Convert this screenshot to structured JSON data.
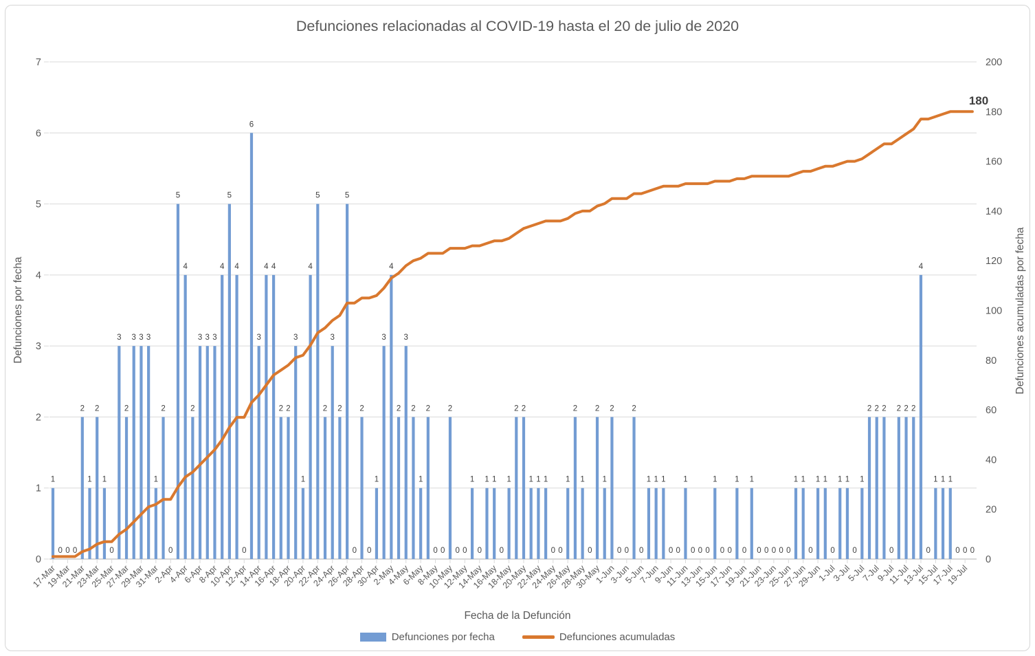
{
  "title": "Defunciones relacionadas al COVID-19 hasta el 20 de julio de 2020",
  "chart_data": {
    "type": "bar",
    "combo": "bar+line",
    "title": "Defunciones relacionadas al COVID-19 hasta el 20 de julio de 2020",
    "xlabel": "Fecha de la Defunción",
    "ylabel_left": "Defunciones por fecha",
    "ylabel_right": "Defunciones acumuladas por fecha",
    "ylim_left": [
      0,
      7
    ],
    "ytick_step_left": 1,
    "ylim_right": [
      0,
      200
    ],
    "ytick_step_right": 20,
    "x_tick_every": 2,
    "grid": "horizontal-left-axis",
    "legend_position": "bottom",
    "annotation": {
      "text": "180"
    },
    "colors": {
      "bar": "#739CD3",
      "line": "#D9782E",
      "grid": "#D9D9D9",
      "axis": "#BFBFBF",
      "tick_text": "#595959",
      "data_label": "#404040"
    },
    "categories": [
      "17-Mar",
      "18-Mar",
      "19-Mar",
      "20-Mar",
      "21-Mar",
      "22-Mar",
      "23-Mar",
      "24-Mar",
      "25-Mar",
      "26-Mar",
      "27-Mar",
      "28-Mar",
      "29-Mar",
      "30-Mar",
      "31-Mar",
      "1-Apr",
      "2-Apr",
      "3-Apr",
      "4-Apr",
      "5-Apr",
      "6-Apr",
      "7-Apr",
      "8-Apr",
      "9-Apr",
      "10-Apr",
      "11-Apr",
      "12-Apr",
      "13-Apr",
      "14-Apr",
      "15-Apr",
      "16-Apr",
      "17-Apr",
      "18-Apr",
      "19-Apr",
      "20-Apr",
      "21-Apr",
      "22-Apr",
      "23-Apr",
      "24-Apr",
      "25-Apr",
      "26-Apr",
      "27-Apr",
      "28-Apr",
      "29-Apr",
      "30-Apr",
      "1-May",
      "2-May",
      "3-May",
      "4-May",
      "5-May",
      "6-May",
      "7-May",
      "8-May",
      "9-May",
      "10-May",
      "11-May",
      "12-May",
      "13-May",
      "14-May",
      "15-May",
      "16-May",
      "17-May",
      "18-May",
      "19-May",
      "20-May",
      "21-May",
      "22-May",
      "23-May",
      "24-May",
      "25-May",
      "26-May",
      "27-May",
      "28-May",
      "29-May",
      "30-May",
      "31-May",
      "1-Jun",
      "2-Jun",
      "3-Jun",
      "4-Jun",
      "5-Jun",
      "6-Jun",
      "7-Jun",
      "8-Jun",
      "9-Jun",
      "10-Jun",
      "11-Jun",
      "12-Jun",
      "13-Jun",
      "14-Jun",
      "15-Jun",
      "16-Jun",
      "17-Jun",
      "18-Jun",
      "19-Jun",
      "20-Jun",
      "21-Jun",
      "22-Jun",
      "23-Jun",
      "24-Jun",
      "25-Jun",
      "26-Jun",
      "27-Jun",
      "28-Jun",
      "29-Jun",
      "30-Jun",
      "1-Jul",
      "2-Jul",
      "3-Jul",
      "4-Jul",
      "5-Jul",
      "6-Jul",
      "7-Jul",
      "8-Jul",
      "9-Jul",
      "10-Jul",
      "11-Jul",
      "12-Jul",
      "13-Jul",
      "14-Jul",
      "15-Jul",
      "16-Jul",
      "17-Jul",
      "18-Jul",
      "19-Jul",
      "20-Jul"
    ],
    "series": [
      {
        "name": "Defunciones por fecha",
        "type": "bar",
        "axis": "left",
        "values": [
          1,
          0,
          0,
          0,
          2,
          1,
          2,
          1,
          0,
          3,
          2,
          3,
          3,
          3,
          1,
          2,
          0,
          5,
          4,
          2,
          3,
          3,
          3,
          4,
          5,
          4,
          0,
          6,
          3,
          4,
          4,
          2,
          2,
          3,
          1,
          4,
          5,
          2,
          3,
          2,
          5,
          0,
          2,
          0,
          1,
          3,
          4,
          2,
          3,
          2,
          1,
          2,
          0,
          0,
          2,
          0,
          0,
          1,
          0,
          1,
          1,
          0,
          1,
          2,
          2,
          1,
          1,
          1,
          0,
          0,
          1,
          2,
          1,
          0,
          2,
          1,
          2,
          0,
          0,
          2,
          0,
          1,
          1,
          1,
          0,
          0,
          1,
          0,
          0,
          0,
          1,
          0,
          0,
          1,
          0,
          1,
          0,
          0,
          0,
          0,
          0,
          1,
          1,
          0,
          1,
          1,
          0,
          1,
          1,
          0,
          1,
          2,
          2,
          2,
          0,
          2,
          2,
          2,
          4,
          0,
          1,
          1,
          1,
          0,
          0,
          0
        ]
      },
      {
        "name": "Defunciones acumuladas",
        "type": "line",
        "axis": "right",
        "values": [
          1,
          1,
          1,
          1,
          3,
          4,
          6,
          7,
          7,
          10,
          12,
          15,
          18,
          21,
          22,
          24,
          24,
          29,
          33,
          35,
          38,
          41,
          44,
          48,
          53,
          57,
          57,
          63,
          66,
          70,
          74,
          76,
          78,
          81,
          82,
          86,
          91,
          93,
          96,
          98,
          103,
          103,
          105,
          105,
          106,
          109,
          113,
          115,
          118,
          120,
          121,
          123,
          123,
          123,
          125,
          125,
          125,
          126,
          126,
          127,
          128,
          128,
          129,
          131,
          133,
          134,
          135,
          136,
          136,
          136,
          137,
          139,
          140,
          140,
          142,
          143,
          145,
          145,
          145,
          147,
          147,
          148,
          149,
          150,
          150,
          150,
          151,
          151,
          151,
          151,
          152,
          152,
          152,
          153,
          153,
          154,
          154,
          154,
          154,
          154,
          154,
          155,
          156,
          156,
          157,
          158,
          158,
          159,
          160,
          160,
          161,
          163,
          165,
          167,
          167,
          169,
          171,
          173,
          177,
          177,
          178,
          179,
          180,
          180,
          180,
          180
        ],
        "final_value": 180
      }
    ]
  },
  "legend": {
    "bar_label": "Defunciones por fecha",
    "line_label": "Defunciones acumuladas"
  },
  "axes": {
    "x_title": "Fecha de la Defunción",
    "y_left_title": "Defunciones por fecha",
    "y_right_title": "Defunciones acumuladas por fecha"
  }
}
